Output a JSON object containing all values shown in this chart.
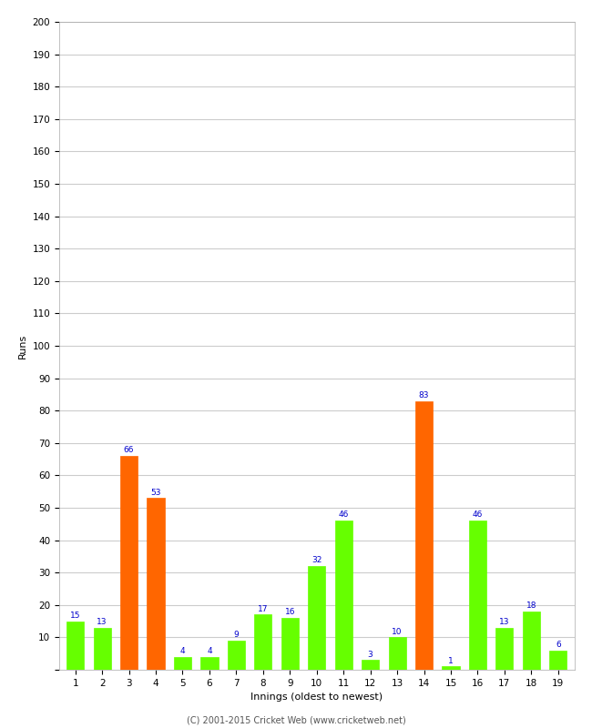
{
  "xlabel": "Innings (oldest to newest)",
  "ylabel": "Runs",
  "innings": [
    1,
    2,
    3,
    4,
    5,
    6,
    7,
    8,
    9,
    10,
    11,
    12,
    13,
    14,
    15,
    16,
    17,
    18,
    19
  ],
  "values": [
    15,
    13,
    66,
    53,
    4,
    4,
    9,
    17,
    16,
    32,
    46,
    3,
    10,
    83,
    1,
    46,
    13,
    18,
    6
  ],
  "colors": [
    "#66ff00",
    "#66ff00",
    "#ff6600",
    "#ff6600",
    "#66ff00",
    "#66ff00",
    "#66ff00",
    "#66ff00",
    "#66ff00",
    "#66ff00",
    "#66ff00",
    "#66ff00",
    "#66ff00",
    "#ff6600",
    "#66ff00",
    "#66ff00",
    "#66ff00",
    "#66ff00",
    "#66ff00"
  ],
  "ylim": [
    0,
    200
  ],
  "yticks": [
    0,
    10,
    20,
    30,
    40,
    50,
    60,
    70,
    80,
    90,
    100,
    110,
    120,
    130,
    140,
    150,
    160,
    170,
    180,
    190,
    200
  ],
  "label_color": "#0000cc",
  "label_fontsize": 6.5,
  "axis_fontsize": 8,
  "tick_fontsize": 7.5,
  "background_color": "#ffffff",
  "grid_color": "#cccccc",
  "footer": "(C) 2001-2015 Cricket Web (www.cricketweb.net)",
  "footer_fontsize": 7
}
